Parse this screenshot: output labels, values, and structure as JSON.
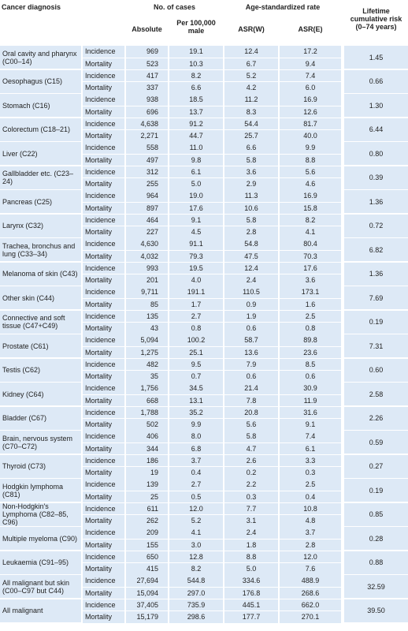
{
  "header": {
    "diagnosis": "Cancer diagnosis",
    "cases": "No. of cases",
    "absolute": "Absolute",
    "per_100000": "Per 100,000 male",
    "asr": "Age-standardized rate",
    "asr_w": "ASR(W)",
    "asr_e": "ASR(E)",
    "lifetime": "Lifetime cumulative risk (0–74 years)"
  },
  "rows": [
    {
      "diagnosis": "Oral cavity and pharynx (C00–14)",
      "sub": [
        {
          "label": "Incidence",
          "values": [
            "969",
            "19.1",
            "12.4",
            "17.2"
          ]
        },
        {
          "label": "Mortality",
          "values": [
            "523",
            "10.3",
            "6.7",
            "9.4"
          ]
        }
      ],
      "lifetime": "1.45"
    },
    {
      "diagnosis": "Oesophagus (C15)",
      "sub": [
        {
          "label": "Incidence",
          "values": [
            "417",
            "8.2",
            "5.2",
            "7.4"
          ]
        },
        {
          "label": "Mortality",
          "values": [
            "337",
            "6.6",
            "4.2",
            "6.0"
          ]
        }
      ],
      "lifetime": "0.66"
    },
    {
      "diagnosis": "Stomach (C16)",
      "sub": [
        {
          "label": "Incidence",
          "values": [
            "938",
            "18.5",
            "11.2",
            "16.9"
          ]
        },
        {
          "label": "Mortality",
          "values": [
            "696",
            "13.7",
            "8.3",
            "12.6"
          ]
        }
      ],
      "lifetime": "1.30"
    },
    {
      "diagnosis": "Colorectum (C18–21)",
      "sub": [
        {
          "label": "Incidence",
          "values": [
            "4,638",
            "91.2",
            "54.4",
            "81.7"
          ]
        },
        {
          "label": "Mortality",
          "values": [
            "2,271",
            "44.7",
            "25.7",
            "40.0"
          ]
        }
      ],
      "lifetime": "6.44"
    },
    {
      "diagnosis": "Liver (C22)",
      "sub": [
        {
          "label": "Incidence",
          "values": [
            "558",
            "11.0",
            "6.6",
            "9.9"
          ]
        },
        {
          "label": "Mortality",
          "values": [
            "497",
            "9.8",
            "5.8",
            "8.8"
          ]
        }
      ],
      "lifetime": "0.80"
    },
    {
      "diagnosis": "Gallbladder etc. (C23–24)",
      "sub": [
        {
          "label": "Incidence",
          "values": [
            "312",
            "6.1",
            "3.6",
            "5.6"
          ]
        },
        {
          "label": "Mortality",
          "values": [
            "255",
            "5.0",
            "2.9",
            "4.6"
          ]
        }
      ],
      "lifetime": "0.39"
    },
    {
      "diagnosis": "Pancreas (C25)",
      "sub": [
        {
          "label": "Incidence",
          "values": [
            "964",
            "19.0",
            "11.3",
            "16.9"
          ]
        },
        {
          "label": "Mortality",
          "values": [
            "897",
            "17.6",
            "10.6",
            "15.8"
          ]
        }
      ],
      "lifetime": "1.36"
    },
    {
      "diagnosis": "Larynx (C32)",
      "sub": [
        {
          "label": "Incidence",
          "values": [
            "464",
            "9.1",
            "5.8",
            "8.2"
          ]
        },
        {
          "label": "Mortality",
          "values": [
            "227",
            "4.5",
            "2.8",
            "4.1"
          ]
        }
      ],
      "lifetime": "0.72"
    },
    {
      "diagnosis": "Trachea, bronchus and lung (C33–34)",
      "sub": [
        {
          "label": "Incidence",
          "values": [
            "4,630",
            "91.1",
            "54.8",
            "80.4"
          ]
        },
        {
          "label": "Mortality",
          "values": [
            "4,032",
            "79.3",
            "47.5",
            "70.3"
          ]
        }
      ],
      "lifetime": "6.82"
    },
    {
      "diagnosis": "Melanoma of skin (C43)",
      "sub": [
        {
          "label": "Incidence",
          "values": [
            "993",
            "19.5",
            "12.4",
            "17.6"
          ]
        },
        {
          "label": "Mortality",
          "values": [
            "201",
            "4.0",
            "2.4",
            "3.6"
          ]
        }
      ],
      "lifetime": "1.36"
    },
    {
      "diagnosis": "Other skin (C44)",
      "sub": [
        {
          "label": "Incidence",
          "values": [
            "9,711",
            "191.1",
            "110.5",
            "173.1"
          ]
        },
        {
          "label": "Mortality",
          "values": [
            "85",
            "1.7",
            "0.9",
            "1.6"
          ]
        }
      ],
      "lifetime": "7.69"
    },
    {
      "diagnosis": "Connective and soft tissue (C47+C49)",
      "sub": [
        {
          "label": "Incidence",
          "values": [
            "135",
            "2.7",
            "1.9",
            "2.5"
          ]
        },
        {
          "label": "Mortality",
          "values": [
            "43",
            "0.8",
            "0.6",
            "0.8"
          ]
        }
      ],
      "lifetime": "0.19"
    },
    {
      "diagnosis": "Prostate (C61)",
      "sub": [
        {
          "label": "Incidence",
          "values": [
            "5,094",
            "100.2",
            "58.7",
            "89.8"
          ]
        },
        {
          "label": "Mortality",
          "values": [
            "1,275",
            "25.1",
            "13.6",
            "23.6"
          ]
        }
      ],
      "lifetime": "7.31"
    },
    {
      "diagnosis": "Testis (C62)",
      "sub": [
        {
          "label": "Incidence",
          "values": [
            "482",
            "9.5",
            "7.9",
            "8.5"
          ]
        },
        {
          "label": "Mortality",
          "values": [
            "35",
            "0.7",
            "0.6",
            "0.6"
          ]
        }
      ],
      "lifetime": "0.60"
    },
    {
      "diagnosis": "Kidney (C64)",
      "sub": [
        {
          "label": "Incidence",
          "values": [
            "1,756",
            "34.5",
            "21.4",
            "30.9"
          ]
        },
        {
          "label": "Mortality",
          "values": [
            "668",
            "13.1",
            "7.8",
            "11.9"
          ]
        }
      ],
      "lifetime": "2.58"
    },
    {
      "diagnosis": "Bladder (C67)",
      "sub": [
        {
          "label": "Incidence",
          "values": [
            "1,788",
            "35.2",
            "20.8",
            "31.6"
          ]
        },
        {
          "label": "Mortality",
          "values": [
            "502",
            "9.9",
            "5.6",
            "9.1"
          ]
        }
      ],
      "lifetime": "2.26"
    },
    {
      "diagnosis": "Brain, nervous system (C70–C72)",
      "sub": [
        {
          "label": "Incidence",
          "values": [
            "406",
            "8.0",
            "5.8",
            "7.4"
          ]
        },
        {
          "label": "Mortality",
          "values": [
            "344",
            "6.8",
            "4.7",
            "6.1"
          ]
        }
      ],
      "lifetime": "0.59"
    },
    {
      "diagnosis": "Thyroid (C73)",
      "sub": [
        {
          "label": "Incidence",
          "values": [
            "186",
            "3.7",
            "2.6",
            "3.3"
          ]
        },
        {
          "label": "Mortality",
          "values": [
            "19",
            "0.4",
            "0.2",
            "0.3"
          ]
        }
      ],
      "lifetime": "0.27"
    },
    {
      "diagnosis": "Hodgkin lymphoma (C81)",
      "sub": [
        {
          "label": "Incidence",
          "values": [
            "139",
            "2.7",
            "2.2",
            "2.5"
          ]
        },
        {
          "label": "Mortality",
          "values": [
            "25",
            "0.5",
            "0.3",
            "0.4"
          ]
        }
      ],
      "lifetime": "0.19"
    },
    {
      "diagnosis": "Non-Hodgkin's Lymphoma (C82–85, C96)",
      "sub": [
        {
          "label": "Incidence",
          "values": [
            "611",
            "12.0",
            "7.7",
            "10.8"
          ]
        },
        {
          "label": "Mortality",
          "values": [
            "262",
            "5.2",
            "3.1",
            "4.8"
          ]
        }
      ],
      "lifetime": "0.85"
    },
    {
      "diagnosis": "Multiple myeloma (C90)",
      "sub": [
        {
          "label": "Incidence",
          "values": [
            "209",
            "4.1",
            "2.4",
            "3.7"
          ]
        },
        {
          "label": "Mortality",
          "values": [
            "155",
            "3.0",
            "1.8",
            "2.8"
          ]
        }
      ],
      "lifetime": "0.28"
    },
    {
      "diagnosis": "Leukaemia (C91–95)",
      "sub": [
        {
          "label": "Incidence",
          "values": [
            "650",
            "12.8",
            "8.8",
            "12.0"
          ]
        },
        {
          "label": "Mortality",
          "values": [
            "415",
            "8.2",
            "5.0",
            "7.6"
          ]
        }
      ],
      "lifetime": "0.88"
    },
    {
      "diagnosis": "All malignant but skin (C00–C97 but C44)",
      "sub": [
        {
          "label": "Incidence",
          "values": [
            "27,694",
            "544.8",
            "334.6",
            "488.9"
          ]
        },
        {
          "label": "Mortality",
          "values": [
            "15,094",
            "297.0",
            "176.8",
            "268.6"
          ]
        }
      ],
      "lifetime": "32.59"
    },
    {
      "diagnosis": "All malignant",
      "sub": [
        {
          "label": "Incidence",
          "values": [
            "37,405",
            "735.9",
            "445.1",
            "662.0"
          ]
        },
        {
          "label": "Mortality",
          "values": [
            "15,179",
            "298.6",
            "177.7",
            "270.1"
          ]
        }
      ],
      "lifetime": "39.50"
    }
  ]
}
